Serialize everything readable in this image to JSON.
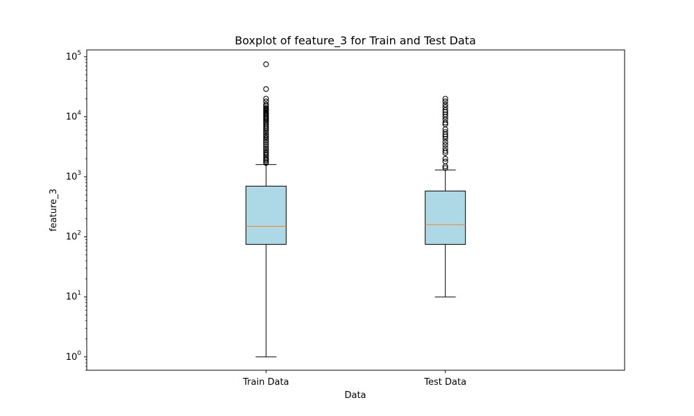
{
  "chart_data": {
    "type": "box",
    "title": "Boxplot of feature_3 for Train and Test Data",
    "xlabel": "Data",
    "ylabel": "feature_3",
    "yscale": "log",
    "ylim": [
      0.6,
      130000
    ],
    "yticks": [
      {
        "value": 1,
        "base": "10",
        "exp": "0"
      },
      {
        "value": 10,
        "base": "10",
        "exp": "1"
      },
      {
        "value": 100,
        "base": "10",
        "exp": "2"
      },
      {
        "value": 1000,
        "base": "10",
        "exp": "3"
      },
      {
        "value": 10000,
        "base": "10",
        "exp": "4"
      },
      {
        "value": 100000,
        "base": "10",
        "exp": "5"
      }
    ],
    "categories": [
      "Train Data",
      "Test Data"
    ],
    "grid": false,
    "box_color": "#add8e6",
    "median_color": "#ff7f0e",
    "series": [
      {
        "name": "Train Data",
        "whisker_low": 1,
        "q1": 75,
        "median": 150,
        "q3": 700,
        "whisker_high": 1600,
        "outliers": [
          75000,
          29000,
          20000,
          18000,
          16000,
          15000,
          14000,
          13500,
          13000,
          12500,
          12000,
          11500,
          11000,
          10500,
          10000,
          9600,
          9200,
          8800,
          8400,
          8000,
          7500,
          7000,
          6600,
          6200,
          5800,
          5400,
          5000,
          4700,
          4400,
          4100,
          3800,
          3500,
          3250,
          3000,
          2800,
          2600,
          2450,
          2300,
          2150,
          2000,
          1900,
          1800,
          1700
        ]
      },
      {
        "name": "Test Data",
        "whisker_low": 10,
        "q1": 75,
        "median": 160,
        "q3": 580,
        "whisker_high": 1300,
        "outliers": [
          20000,
          18000,
          16000,
          14500,
          13000,
          12000,
          11000,
          10000,
          9000,
          8000,
          7500,
          6200,
          5600,
          5100,
          4700,
          4300,
          3800,
          3400,
          3000,
          2700,
          2500,
          2000,
          1800,
          1500,
          1400
        ]
      }
    ]
  }
}
